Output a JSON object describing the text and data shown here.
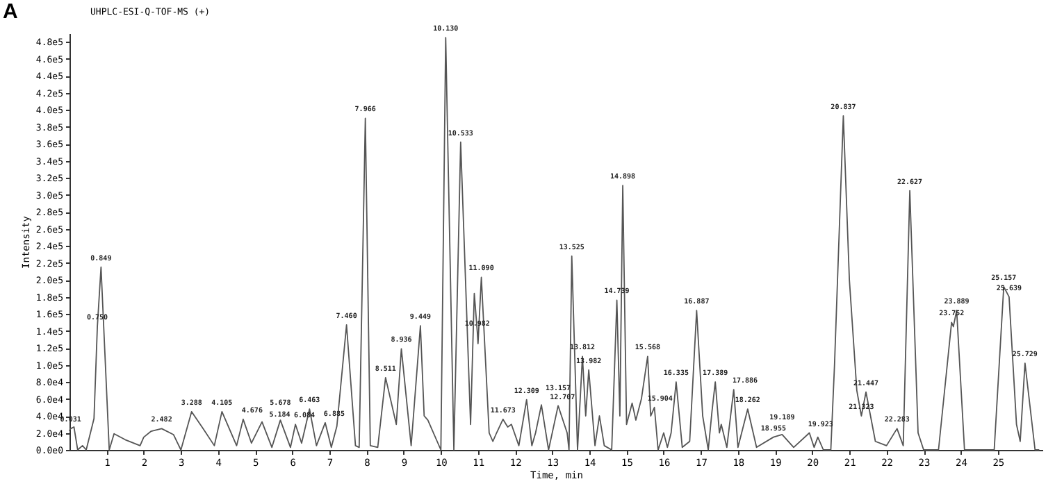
{
  "chart_data": {
    "type": "line",
    "title": "UHPLC-ESI-Q-TOF-MS (+)",
    "xlabel": "Time, min",
    "ylabel": "Intensity",
    "x": [
      0,
      0.031,
      0.12,
      0.22,
      0.35,
      0.45,
      0.66,
      0.75,
      0.849,
      1.07,
      1.2,
      1.5,
      1.9,
      2.0,
      2.2,
      2.482,
      2.8,
      3.0,
      3.288,
      3.6,
      3.9,
      4.105,
      4.5,
      4.676,
      4.9,
      5.184,
      5.45,
      5.678,
      5.95,
      6.084,
      6.25,
      6.463,
      6.65,
      6.885,
      7.05,
      7.2,
      7.46,
      7.7,
      7.8,
      7.966,
      8.1,
      8.3,
      8.511,
      8.8,
      8.936,
      9.2,
      9.449,
      9.55,
      9.65,
      9.9,
      10.0,
      10.13,
      10.35,
      10.533,
      10.8,
      10.9,
      10.982,
      11.0,
      11.09,
      11.3,
      11.4,
      11.5,
      11.673,
      11.8,
      11.9,
      12.1,
      12.309,
      12.45,
      12.55,
      12.707,
      12.9,
      13.157,
      13.4,
      13.45,
      13.525,
      13.68,
      13.812,
      13.9,
      13.982,
      14.15,
      14.27,
      14.4,
      14.6,
      14.739,
      14.82,
      14.898,
      15.0,
      15.15,
      15.25,
      15.4,
      15.568,
      15.65,
      15.75,
      15.85,
      16.0,
      16.1,
      16.2,
      16.335,
      16.5,
      16.7,
      16.887,
      17.05,
      17.2,
      17.3,
      17.389,
      17.5,
      17.55,
      17.7,
      17.886,
      18.0,
      18.262,
      18.5,
      18.955,
      19.189,
      19.5,
      19.923,
      20.05,
      20.15,
      20.3,
      20.5,
      20.6,
      20.837,
      21.0,
      21.2,
      21.323,
      21.447,
      21.7,
      22.0,
      22.283,
      22.45,
      22.627,
      22.85,
      23.0,
      23.4,
      23.752,
      23.8,
      23.889,
      24.1,
      24.9,
      25.157,
      25.3,
      25.5,
      25.6,
      25.729,
      26.0,
      26.1
    ],
    "values": [
      23000,
      25000,
      27000,
      0,
      5000,
      0,
      37000,
      145000,
      215000,
      0,
      19000,
      12000,
      5000,
      15000,
      22000,
      25000,
      18000,
      0,
      45000,
      25000,
      5000,
      45000,
      5000,
      36000,
      8000,
      33000,
      3000,
      35000,
      3000,
      30000,
      8000,
      48000,
      5000,
      32000,
      3000,
      28000,
      147000,
      5000,
      3000,
      390000,
      5000,
      3000,
      85000,
      30000,
      119000,
      5000,
      146000,
      40000,
      35000,
      10000,
      0,
      485000,
      0,
      362000,
      30000,
      184000,
      138000,
      125000,
      203000,
      20000,
      10000,
      20000,
      36000,
      27000,
      30000,
      5000,
      59000,
      5000,
      20000,
      53000,
      0,
      52000,
      20000,
      0,
      228000,
      0,
      110000,
      40000,
      94000,
      5000,
      40000,
      5000,
      0,
      176000,
      40000,
      311000,
      30000,
      55000,
      35000,
      60000,
      110000,
      40000,
      50000,
      0,
      20000,
      3000,
      20000,
      80000,
      3000,
      10000,
      164000,
      40000,
      0,
      45000,
      80000,
      20000,
      30000,
      3000,
      71000,
      3000,
      48000,
      3000,
      15000,
      18000,
      3000,
      20000,
      3000,
      15000,
      0,
      0,
      100000,
      393000,
      200000,
      70000,
      40000,
      68000,
      10000,
      5000,
      25000,
      5000,
      305000,
      20000,
      0,
      0,
      150000,
      145000,
      164000,
      0,
      0,
      192000,
      180000,
      30000,
      10000,
      102000,
      0,
      0
    ],
    "color": "#555555",
    "xlim": [
      0,
      26.2
    ],
    "ylim": [
      0,
      490000
    ],
    "xticks": [
      1,
      2,
      3,
      4,
      5,
      6,
      7,
      8,
      9,
      10,
      11,
      12,
      13,
      14,
      15,
      16,
      17,
      18,
      19,
      20,
      21,
      22,
      23,
      24,
      25
    ],
    "yticks": [
      {
        "value": 0,
        "label": "0.0e0"
      },
      {
        "value": 20000,
        "label": "2.0e4"
      },
      {
        "value": 40000,
        "label": "4.0e4"
      },
      {
        "value": 60000,
        "label": "6.0e4"
      },
      {
        "value": 80000,
        "label": "8.0e4"
      },
      {
        "value": 100000,
        "label": "1.0e5"
      },
      {
        "value": 120000,
        "label": "1.2e5"
      },
      {
        "value": 140000,
        "label": "1.4e5"
      },
      {
        "value": 160000,
        "label": "1.6e5"
      },
      {
        "value": 180000,
        "label": "1.8e5"
      },
      {
        "value": 200000,
        "label": "2.0e5"
      },
      {
        "value": 220000,
        "label": "2.2e5"
      },
      {
        "value": 240000,
        "label": "2.4e5"
      },
      {
        "value": 260000,
        "label": "2.6e5"
      },
      {
        "value": 280000,
        "label": "2.8e5"
      },
      {
        "value": 300000,
        "label": "3.0e5"
      },
      {
        "value": 320000,
        "label": "3.2e5"
      },
      {
        "value": 340000,
        "label": "3.4e5"
      },
      {
        "value": 360000,
        "label": "3.6e5"
      },
      {
        "value": 380000,
        "label": "3.8e5"
      },
      {
        "value": 400000,
        "label": "4.0e5"
      },
      {
        "value": 420000,
        "label": "4.2e5"
      },
      {
        "value": 440000,
        "label": "4.4e5"
      },
      {
        "value": 460000,
        "label": "4.6e5"
      },
      {
        "value": 480000,
        "label": "4.8e5"
      }
    ],
    "grid": false,
    "annotations": [
      "A",
      {
        "text": "0.031",
        "x": 0.031,
        "y": 25000
      },
      {
        "text": "0.750",
        "x": 0.75,
        "y": 145000
      },
      {
        "text": "0.849",
        "x": 0.849,
        "y": 215000
      },
      {
        "text": "2.482",
        "x": 2.482,
        "y": 25000
      },
      {
        "text": "3.288",
        "x": 3.288,
        "y": 45000
      },
      {
        "text": "4.105",
        "x": 4.105,
        "y": 45000
      },
      {
        "text": "4.676",
        "x": 4.676,
        "y": 36000
      },
      {
        "text": "5.184",
        "x": 5.184,
        "y": 33000
      },
      {
        "text": "5.678",
        "x": 5.678,
        "y": 35000
      },
      {
        "text": "6.084",
        "x": 6.084,
        "y": 30000
      },
      {
        "text": "6.463",
        "x": 6.463,
        "y": 48000
      },
      {
        "text": "6.885",
        "x": 6.885,
        "y": 32000
      },
      {
        "text": "7.460",
        "x": 7.46,
        "y": 147000
      },
      {
        "text": "7.966",
        "x": 7.966,
        "y": 390000
      },
      {
        "text": "8.511",
        "x": 8.511,
        "y": 85000
      },
      {
        "text": "8.936",
        "x": 8.936,
        "y": 119000
      },
      {
        "text": "9.449",
        "x": 9.449,
        "y": 146000
      },
      {
        "text": "10.130",
        "x": 10.13,
        "y": 485000
      },
      {
        "text": "10.533",
        "x": 10.533,
        "y": 362000
      },
      {
        "text": "10.982",
        "x": 10.982,
        "y": 138000
      },
      {
        "text": "11.090",
        "x": 11.09,
        "y": 203000
      },
      {
        "text": "11.673",
        "x": 11.673,
        "y": 36000
      },
      {
        "text": "12.309",
        "x": 12.309,
        "y": 59000
      },
      {
        "text": "12.707",
        "x": 12.707,
        "y": 53000
      },
      {
        "text": "13.157",
        "x": 13.157,
        "y": 52000
      },
      {
        "text": "13.525",
        "x": 13.525,
        "y": 228000
      },
      {
        "text": "13.812",
        "x": 13.812,
        "y": 110000
      },
      {
        "text": "13.982",
        "x": 13.982,
        "y": 94000
      },
      {
        "text": "14.739",
        "x": 14.739,
        "y": 176000
      },
      {
        "text": "14.898",
        "x": 14.898,
        "y": 311000
      },
      {
        "text": "15.568",
        "x": 15.568,
        "y": 110000
      },
      {
        "text": "15.904",
        "x": 15.904,
        "y": 50000
      },
      {
        "text": "16.335",
        "x": 16.335,
        "y": 80000
      },
      {
        "text": "16.887",
        "x": 16.887,
        "y": 164000
      },
      {
        "text": "17.389",
        "x": 17.389,
        "y": 80000
      },
      {
        "text": "17.886",
        "x": 17.886,
        "y": 71000
      },
      {
        "text": "18.262",
        "x": 18.262,
        "y": 48000
      },
      {
        "text": "18.955",
        "x": 18.955,
        "y": 15000
      },
      {
        "text": "19.189",
        "x": 19.189,
        "y": 18000
      },
      {
        "text": "19.923",
        "x": 19.923,
        "y": 20000
      },
      {
        "text": "20.837",
        "x": 20.837,
        "y": 393000
      },
      {
        "text": "21.447",
        "x": 21.447,
        "y": 68000
      },
      {
        "text": "21.323",
        "x": 21.323,
        "y": 40000
      },
      {
        "text": "22.283",
        "x": 22.283,
        "y": 25000
      },
      {
        "text": "22.627",
        "x": 22.627,
        "y": 305000
      },
      {
        "text": "23.752",
        "x": 23.752,
        "y": 150000
      },
      {
        "text": "23.889",
        "x": 23.889,
        "y": 164000
      },
      {
        "text": "25.157",
        "x": 25.157,
        "y": 192000
      },
      {
        "text": "25.639",
        "x": 25.3,
        "y": 180000
      },
      {
        "text": "25.729",
        "x": 25.729,
        "y": 102000
      }
    ]
  }
}
